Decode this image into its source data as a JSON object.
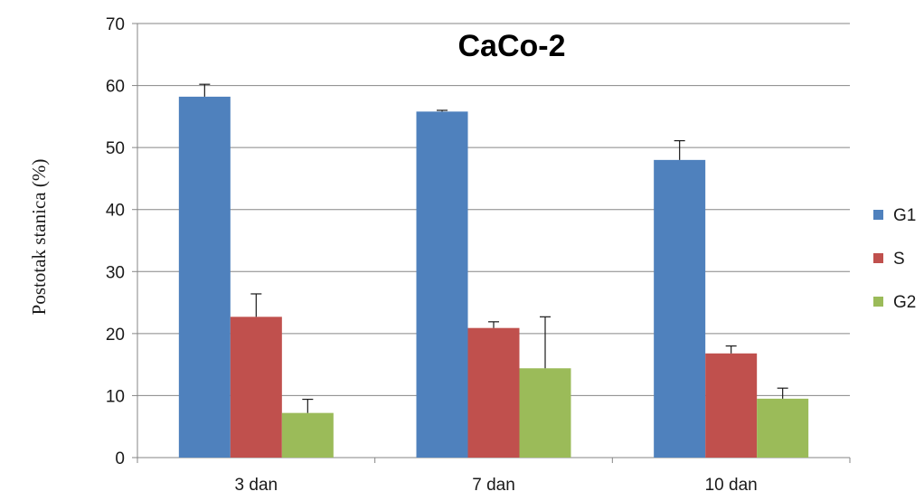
{
  "chart_data": {
    "type": "bar",
    "title": "CaCo-2",
    "xlabel": "",
    "ylabel": "Postotak stanica (%)",
    "categories": [
      "3 dan",
      "7 dan",
      "10 dan"
    ],
    "ylim": [
      0,
      70
    ],
    "yticks": [
      0,
      10,
      20,
      30,
      40,
      50,
      60,
      70
    ],
    "grid": true,
    "legend_position": "right",
    "series": [
      {
        "name": "G1",
        "color": "#4f81bd",
        "values": [
          58.2,
          55.8,
          48.0
        ],
        "errors": [
          2.0,
          0.2,
          3.1
        ]
      },
      {
        "name": "S",
        "color": "#c0504d",
        "values": [
          22.7,
          20.9,
          16.8
        ],
        "errors": [
          3.7,
          1.0,
          1.2
        ]
      },
      {
        "name": "G2",
        "color": "#9bbb59",
        "values": [
          7.2,
          14.4,
          9.5
        ],
        "errors": [
          2.2,
          8.3,
          1.7
        ]
      }
    ]
  }
}
